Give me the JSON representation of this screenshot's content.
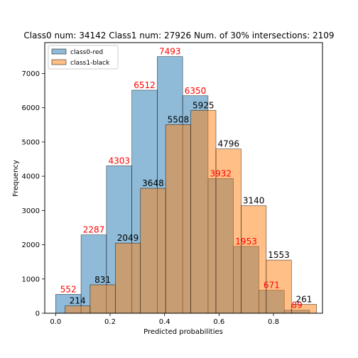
{
  "chart_data": {
    "type": "bar",
    "title": "Class0 num: 34142 Class1 num: 27926 Num. of 30% intersections: 2109",
    "xlabel": "Predicted probabilities",
    "ylabel": "Frequency",
    "xlim": [
      -0.04,
      0.98
    ],
    "ylim": [
      0,
      7900
    ],
    "x_ticks": [
      0.0,
      0.2,
      0.4,
      0.6,
      0.8
    ],
    "x_tick_labels": [
      "0.0",
      "0.2",
      "0.4",
      "0.6",
      "0.8"
    ],
    "y_ticks": [
      0,
      1000,
      2000,
      3000,
      4000,
      5000,
      6000,
      7000
    ],
    "y_tick_labels": [
      "0",
      "1000",
      "2000",
      "3000",
      "4000",
      "5000",
      "6000",
      "7000"
    ],
    "legend_position": "top-left",
    "series": [
      {
        "name": "class0-red",
        "color": "#1f77b4",
        "label_color": "#ff0000",
        "bin_edges": [
          0.0,
          0.0933,
          0.1866,
          0.2799,
          0.3732,
          0.4665,
          0.5598,
          0.6531,
          0.7464,
          0.8397,
          0.933
        ],
        "values": [
          552,
          2287,
          4303,
          6512,
          7493,
          6350,
          3932,
          1953,
          671,
          89
        ]
      },
      {
        "name": "class1-black",
        "color": "#ff7f0e",
        "label_color": "#000000",
        "bin_edges": [
          0.0343,
          0.1267,
          0.2191,
          0.3115,
          0.4039,
          0.4963,
          0.5887,
          0.6811,
          0.7735,
          0.8659,
          0.9583
        ],
        "values": [
          214,
          831,
          2049,
          3648,
          5508,
          5925,
          4796,
          3140,
          1553,
          261
        ]
      }
    ]
  }
}
